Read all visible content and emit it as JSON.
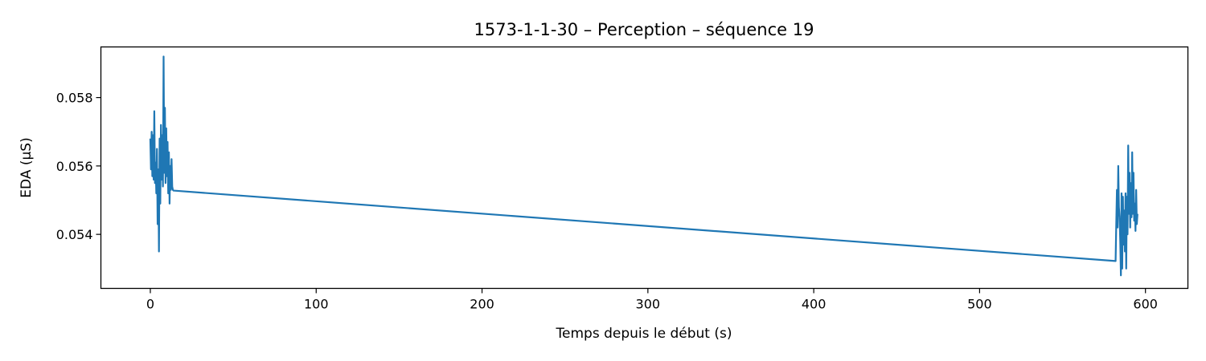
{
  "chart_data": {
    "type": "line",
    "title": "1573-1-1-30 – Perception – séquence 19",
    "xlabel": "Temps depuis le début (s)",
    "ylabel": "EDA (µS)",
    "xlim": [
      -29.8,
      625.6
    ],
    "ylim": [
      0.05242,
      0.05948
    ],
    "xticks": [
      0,
      100,
      200,
      300,
      400,
      500,
      600
    ],
    "yticks": [
      0.054,
      0.056,
      0.058
    ],
    "ytick_labels": [
      "0.054",
      "0.056",
      "0.058"
    ],
    "grid": false,
    "legend": "none",
    "color": "#1f77b4",
    "series": [
      {
        "x": [
          0,
          0.4,
          0.8,
          1.2,
          1.6,
          2.0,
          2.4,
          2.8,
          3.2,
          3.6,
          4.0,
          4.4,
          4.8,
          5.2,
          5.6,
          6.0,
          6.4,
          6.8,
          7.2,
          7.6,
          8.0,
          8.4,
          8.8,
          9.2,
          9.6,
          10.0,
          10.4,
          10.8,
          11.2,
          11.6,
          12.0,
          12.4,
          12.8,
          13.2,
          13.6,
          14.0,
          582.0,
          582.4,
          582.8,
          583.2,
          583.6,
          584.0,
          584.4,
          584.8,
          585.2,
          585.6,
          586.0,
          586.4,
          586.8,
          587.2,
          587.6,
          588.0,
          588.4,
          588.8,
          589.2,
          589.6,
          590.0,
          590.4,
          590.8,
          591.2,
          591.6,
          592.0,
          592.4,
          592.8,
          593.2,
          593.6,
          594.0,
          594.4,
          594.8,
          595.2
        ],
        "y": [
          0.0568,
          0.0559,
          0.057,
          0.0557,
          0.0569,
          0.0556,
          0.0576,
          0.0555,
          0.0561,
          0.0552,
          0.0565,
          0.0543,
          0.0559,
          0.0535,
          0.0568,
          0.0549,
          0.0572,
          0.0556,
          0.0569,
          0.0554,
          0.0592,
          0.0558,
          0.0577,
          0.0555,
          0.0571,
          0.0557,
          0.0567,
          0.0552,
          0.0564,
          0.0549,
          0.056,
          0.0553,
          0.0562,
          0.0554,
          0.0553,
          0.05528,
          0.05322,
          0.0543,
          0.0553,
          0.0542,
          0.056,
          0.0548,
          0.0545,
          0.0538,
          0.0528,
          0.0552,
          0.053,
          0.0551,
          0.0537,
          0.0547,
          0.0535,
          0.0552,
          0.053,
          0.0551,
          0.054,
          0.0566,
          0.0546,
          0.0558,
          0.0542,
          0.0555,
          0.0545,
          0.0564,
          0.0546,
          0.0558,
          0.0544,
          0.0549,
          0.0541,
          0.0553,
          0.0543,
          0.0546
        ]
      }
    ]
  }
}
